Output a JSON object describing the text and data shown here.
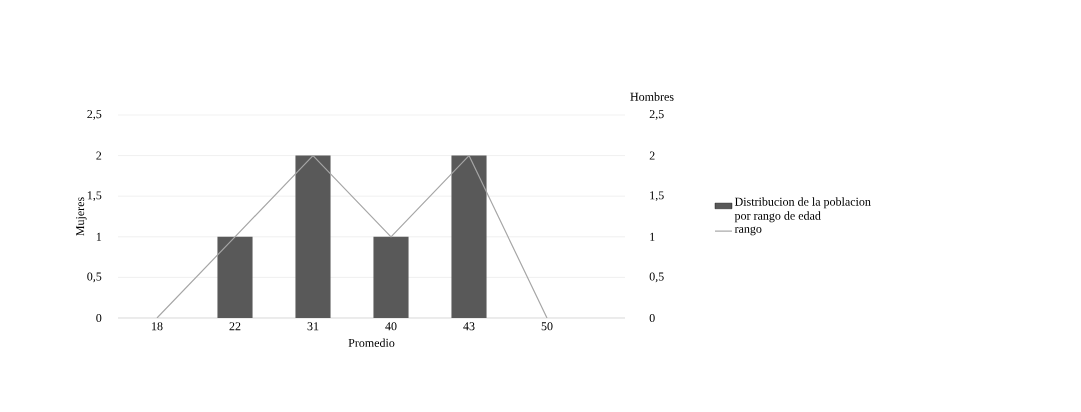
{
  "chart_data": {
    "type": "bar",
    "xlabel": "Promedio",
    "ylabel": "Mujeres",
    "y2label": "Hombres",
    "categories": [
      "18",
      "22",
      "31",
      "40",
      "43",
      "50"
    ],
    "series": [
      {
        "name": "Distribucion de la poblacion por rango de edad",
        "color": "#595959",
        "values": [
          0,
          1,
          2,
          1,
          2,
          0
        ]
      },
      {
        "name": "rango",
        "type": "line",
        "axis": "y2",
        "color": "#a6a6a6",
        "values": [
          0,
          1,
          2,
          1,
          2,
          0
        ]
      }
    ],
    "ylim": [
      0,
      2.5
    ],
    "yticks": [
      0,
      {
        "value": 0.5,
        "label": "0,5"
      },
      1,
      {
        "value": 1.5,
        "label": "1,5"
      },
      2,
      {
        "value": 2.5,
        "label": "2,5"
      }
    ],
    "y2lim": [
      0,
      2.5
    ],
    "y2ticks": [
      0,
      {
        "value": 0.5,
        "label": "0,5"
      },
      1,
      {
        "value": 1.5,
        "label": "1,5"
      },
      2,
      {
        "value": 2.5,
        "label": "2,5"
      }
    ],
    "grid": "y",
    "legend": "right",
    "marker": "none",
    "line_style": "solid"
  }
}
